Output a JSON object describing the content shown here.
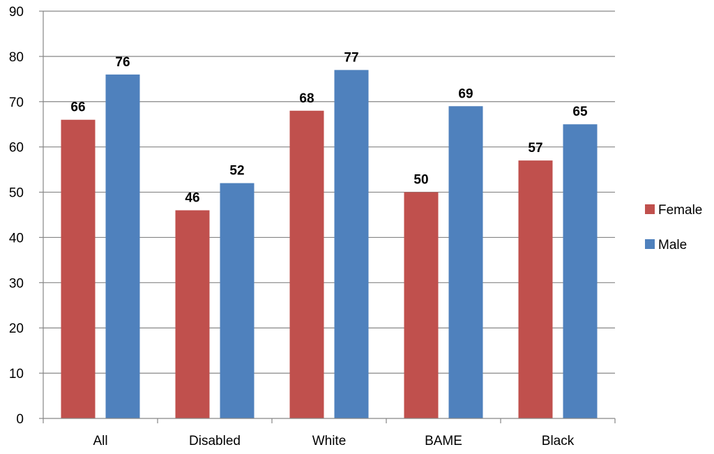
{
  "chart_data": {
    "type": "bar",
    "title": "",
    "xlabel": "",
    "ylabel": "",
    "categories": [
      "All",
      "Disabled",
      "White",
      "BAME",
      "Black"
    ],
    "series": [
      {
        "name": "Female",
        "values": [
          66,
          46,
          68,
          50,
          57
        ],
        "color": "#c0504d"
      },
      {
        "name": "Male",
        "values": [
          76,
          52,
          77,
          69,
          65
        ],
        "color": "#4f81bd"
      }
    ],
    "ylim": [
      0,
      90
    ],
    "yticks": [
      0,
      10,
      20,
      30,
      40,
      50,
      60,
      70,
      80,
      90
    ],
    "grid": true,
    "gridline_color": "#868686",
    "data_labels": true,
    "legend_position": "right"
  }
}
